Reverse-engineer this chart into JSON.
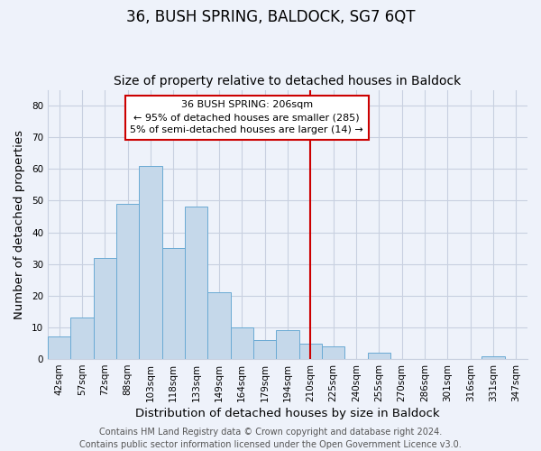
{
  "title": "36, BUSH SPRING, BALDOCK, SG7 6QT",
  "subtitle": "Size of property relative to detached houses in Baldock",
  "xlabel": "Distribution of detached houses by size in Baldock",
  "ylabel": "Number of detached properties",
  "bar_labels": [
    "42sqm",
    "57sqm",
    "72sqm",
    "88sqm",
    "103sqm",
    "118sqm",
    "133sqm",
    "149sqm",
    "164sqm",
    "179sqm",
    "194sqm",
    "210sqm",
    "225sqm",
    "240sqm",
    "255sqm",
    "270sqm",
    "286sqm",
    "301sqm",
    "316sqm",
    "331sqm",
    "347sqm"
  ],
  "bar_values": [
    7,
    13,
    32,
    49,
    61,
    35,
    48,
    21,
    10,
    6,
    9,
    5,
    4,
    0,
    2,
    0,
    0,
    0,
    0,
    1,
    0
  ],
  "bar_color": "#c5d8ea",
  "bar_edge_color": "#6aaad4",
  "vline_x_index": 11,
  "vline_color": "#cc0000",
  "annotation_title": "36 BUSH SPRING: 206sqm",
  "annotation_line1": "← 95% of detached houses are smaller (285)",
  "annotation_line2": "5% of semi-detached houses are larger (14) →",
  "ylim": [
    0,
    85
  ],
  "yticks": [
    0,
    10,
    20,
    30,
    40,
    50,
    60,
    70,
    80
  ],
  "footer_line1": "Contains HM Land Registry data © Crown copyright and database right 2024.",
  "footer_line2": "Contains public sector information licensed under the Open Government Licence v3.0.",
  "background_color": "#eef2fa",
  "grid_color": "#c8d0e0",
  "title_fontsize": 12,
  "subtitle_fontsize": 10,
  "axis_label_fontsize": 9.5,
  "tick_fontsize": 7.5,
  "footer_fontsize": 7,
  "annotation_fontsize": 8
}
